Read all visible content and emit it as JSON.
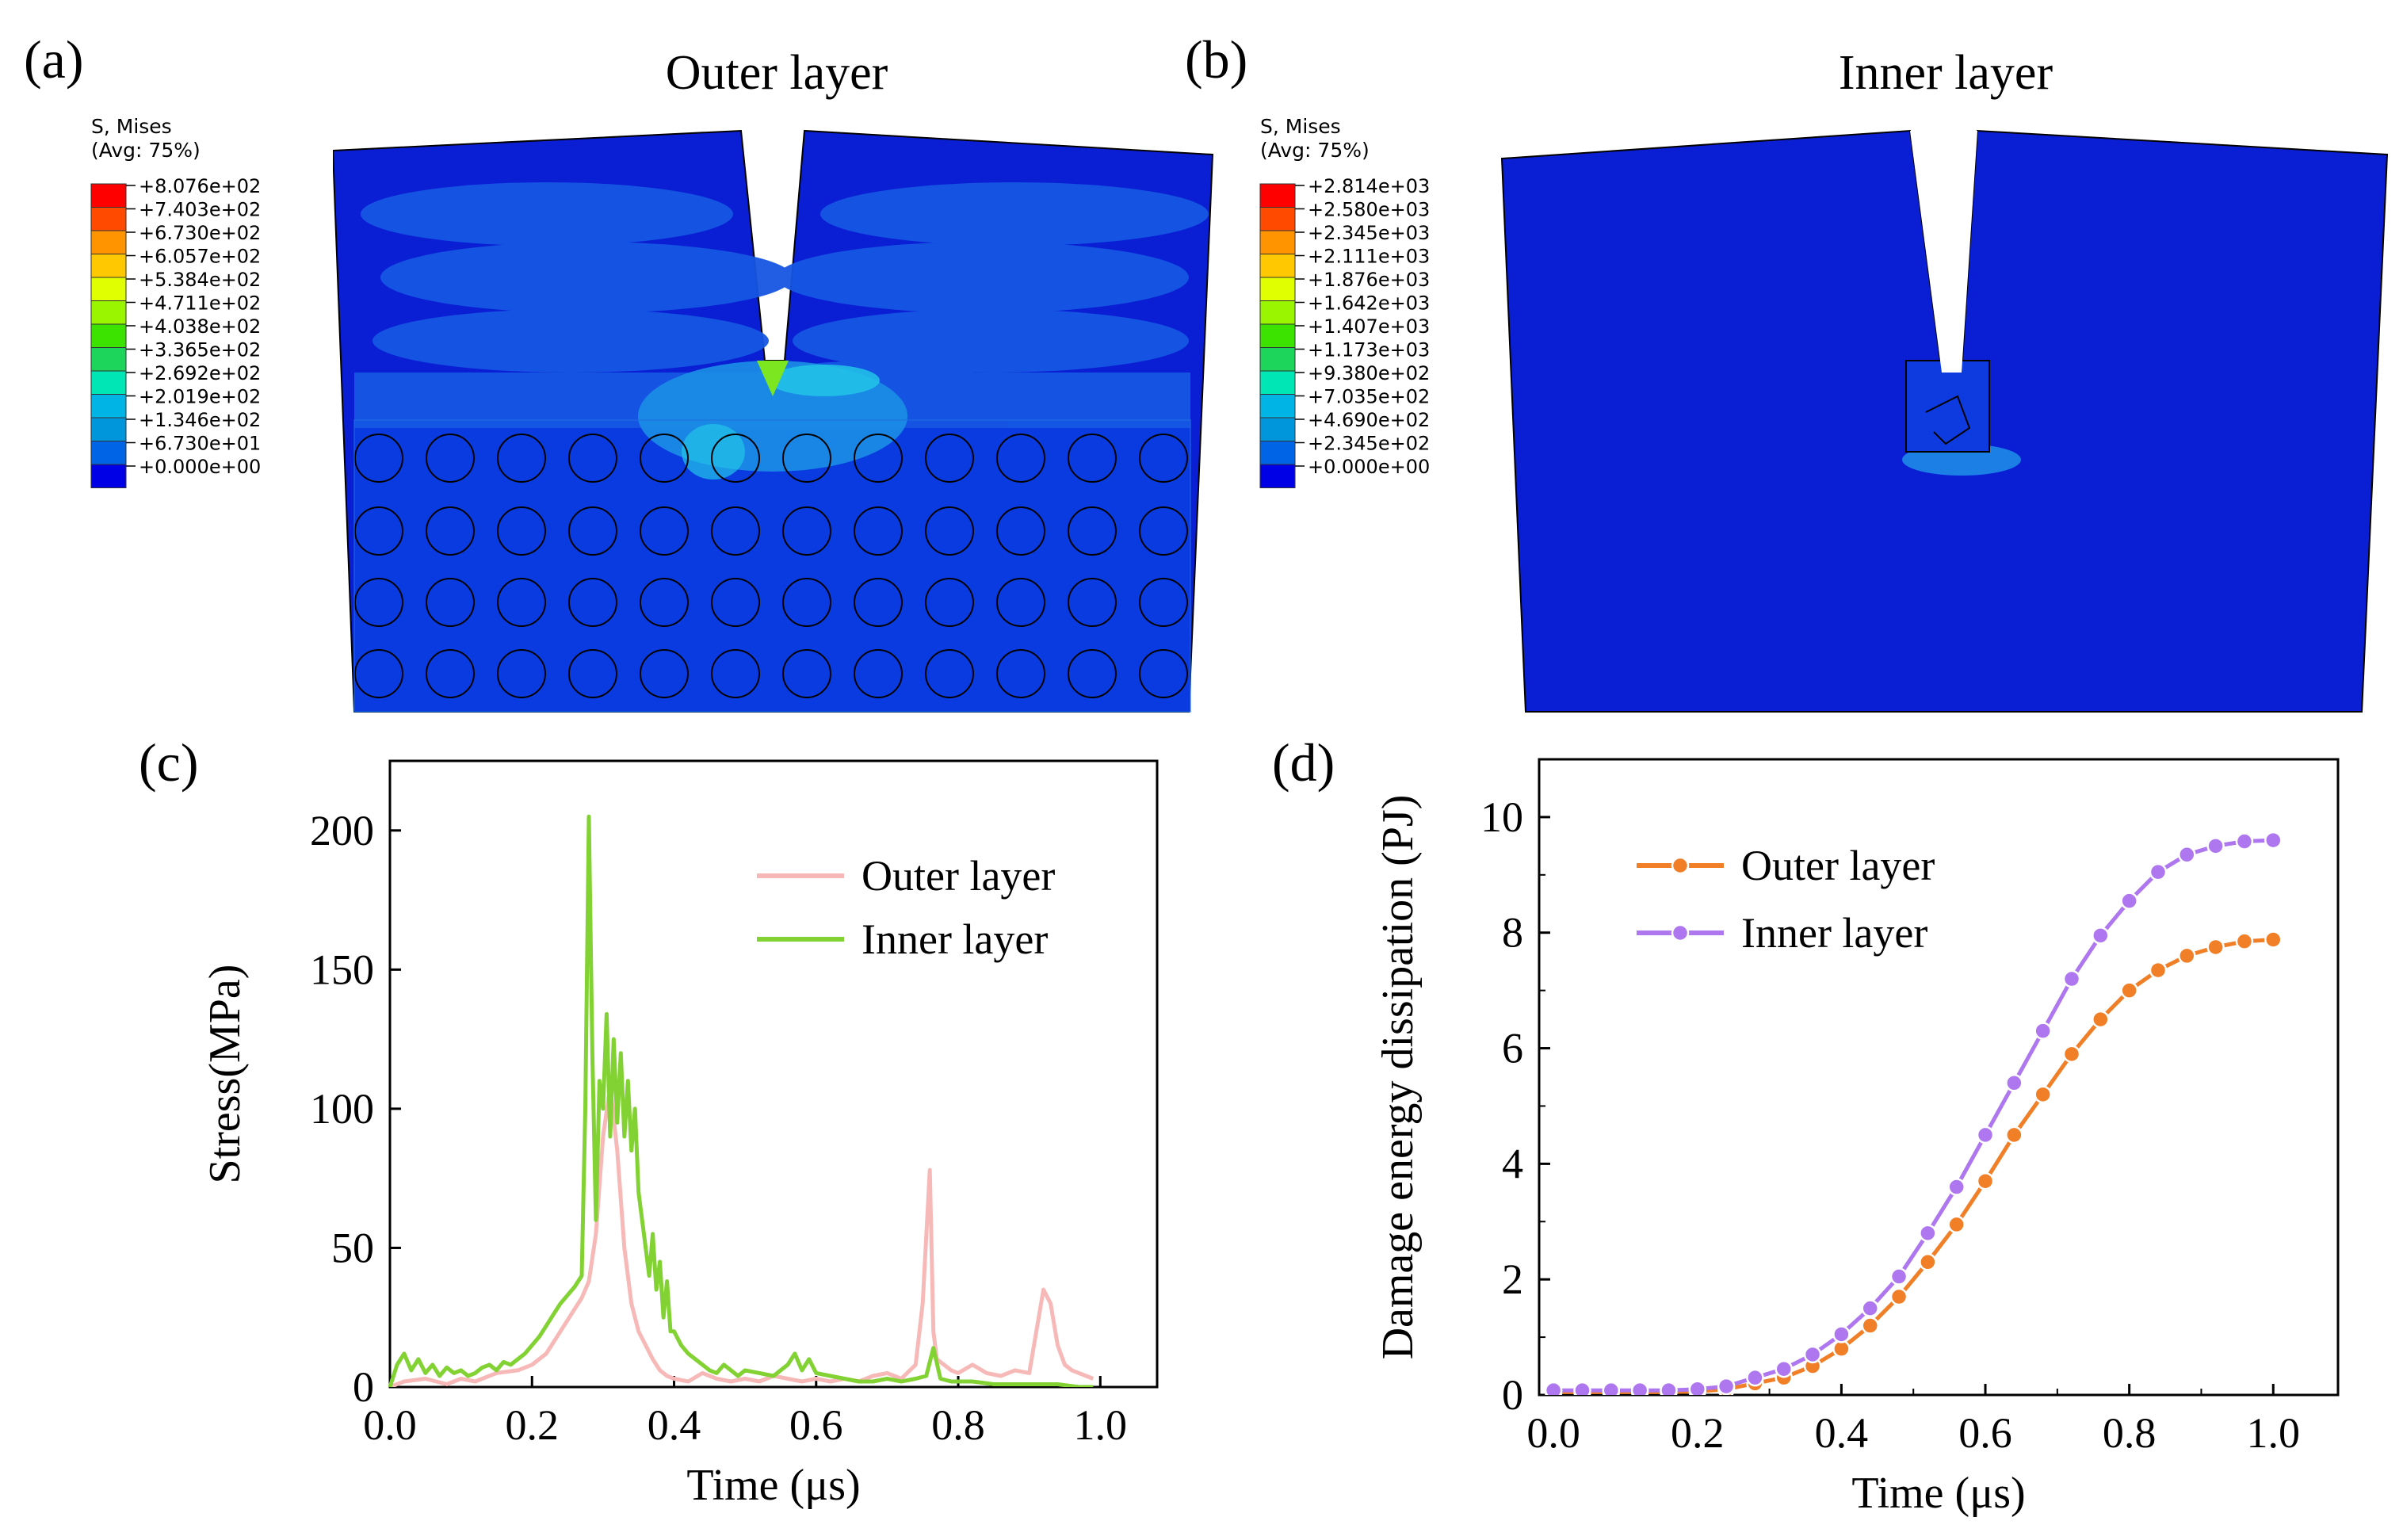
{
  "panels": {
    "a": {
      "label": "(a)",
      "title": "Outer layer",
      "legend_title": [
        "S, Mises",
        "(Avg: 75%)"
      ],
      "legend_values": [
        "+8.076e+02",
        "+7.403e+02",
        "+6.730e+02",
        "+6.057e+02",
        "+5.384e+02",
        "+4.711e+02",
        "+4.038e+02",
        "+3.365e+02",
        "+2.692e+02",
        "+2.019e+02",
        "+1.346e+02",
        "+6.730e+01",
        "+0.000e+00"
      ]
    },
    "b": {
      "label": "(b)",
      "title": "Inner layer",
      "legend_title": [
        "S, Mises",
        "(Avg: 75%)"
      ],
      "legend_values": [
        "+2.814e+03",
        "+2.580e+03",
        "+2.345e+03",
        "+2.111e+03",
        "+1.876e+03",
        "+1.642e+03",
        "+1.407e+03",
        "+1.173e+03",
        "+9.380e+02",
        "+7.035e+02",
        "+4.690e+02",
        "+2.345e+02",
        "+0.000e+00"
      ]
    },
    "c": {
      "label": "(c)"
    },
    "d": {
      "label": "(d)"
    }
  },
  "contour_colors": [
    "#FF0000",
    "#FF4A00",
    "#FF9400",
    "#FFC800",
    "#E0FF00",
    "#9AF500",
    "#3CE300",
    "#1ED55C",
    "#00E6B4",
    "#00B4E6",
    "#0096DC",
    "#0064E6",
    "#0000E6"
  ],
  "chart_data": [
    {
      "id": "c",
      "type": "line",
      "title": "",
      "xlabel": "Time (μs)",
      "ylabel": "Stress(MPa)",
      "xlim": [
        0.0,
        1.08
      ],
      "ylim": [
        0,
        225
      ],
      "xticks": [
        0.0,
        0.2,
        0.4,
        0.6,
        0.8,
        1.0
      ],
      "xtick_labels": [
        "0.0",
        "0.2",
        "0.4",
        "0.6",
        "0.8",
        "1.0"
      ],
      "yticks": [
        0,
        50,
        100,
        150,
        200
      ],
      "ytick_labels": [
        "0",
        "50",
        "100",
        "150",
        "200"
      ],
      "legend_position": "top-right",
      "series": [
        {
          "name": "Outer layer",
          "color": "#F7B9B7",
          "x": [
            0.0,
            0.02,
            0.05,
            0.08,
            0.1,
            0.12,
            0.15,
            0.18,
            0.2,
            0.22,
            0.24,
            0.26,
            0.27,
            0.28,
            0.29,
            0.3,
            0.31,
            0.32,
            0.33,
            0.34,
            0.35,
            0.36,
            0.37,
            0.38,
            0.39,
            0.4,
            0.42,
            0.44,
            0.46,
            0.48,
            0.5,
            0.52,
            0.54,
            0.56,
            0.58,
            0.6,
            0.62,
            0.64,
            0.66,
            0.68,
            0.7,
            0.72,
            0.74,
            0.75,
            0.76,
            0.765,
            0.77,
            0.78,
            0.79,
            0.8,
            0.82,
            0.84,
            0.86,
            0.88,
            0.9,
            0.91,
            0.92,
            0.93,
            0.94,
            0.95,
            0.96,
            0.97,
            0.98,
            0.99
          ],
          "y": [
            0,
            2,
            3,
            1,
            3,
            2,
            5,
            6,
            8,
            12,
            20,
            28,
            32,
            38,
            55,
            90,
            108,
            85,
            50,
            30,
            20,
            15,
            10,
            6,
            4,
            3,
            2,
            5,
            3,
            2,
            3,
            2,
            4,
            3,
            2,
            3,
            2,
            3,
            2,
            4,
            5,
            3,
            8,
            30,
            78,
            20,
            10,
            8,
            6,
            5,
            8,
            5,
            4,
            6,
            5,
            20,
            35,
            30,
            15,
            8,
            6,
            5,
            4,
            3
          ]
        },
        {
          "name": "Inner layer",
          "color": "#82D233",
          "x": [
            0.0,
            0.01,
            0.02,
            0.03,
            0.04,
            0.05,
            0.06,
            0.07,
            0.08,
            0.09,
            0.1,
            0.11,
            0.12,
            0.13,
            0.14,
            0.15,
            0.16,
            0.17,
            0.18,
            0.19,
            0.2,
            0.21,
            0.22,
            0.23,
            0.24,
            0.25,
            0.26,
            0.27,
            0.275,
            0.28,
            0.285,
            0.29,
            0.295,
            0.3,
            0.305,
            0.31,
            0.315,
            0.32,
            0.325,
            0.33,
            0.335,
            0.34,
            0.345,
            0.35,
            0.355,
            0.36,
            0.365,
            0.37,
            0.375,
            0.38,
            0.385,
            0.39,
            0.395,
            0.4,
            0.41,
            0.42,
            0.43,
            0.44,
            0.45,
            0.46,
            0.47,
            0.48,
            0.49,
            0.5,
            0.52,
            0.54,
            0.56,
            0.57,
            0.58,
            0.59,
            0.6,
            0.62,
            0.64,
            0.66,
            0.68,
            0.7,
            0.72,
            0.74,
            0.755,
            0.765,
            0.775,
            0.79,
            0.82,
            0.85,
            0.88,
            0.91,
            0.94,
            0.97,
            0.99
          ],
          "y": [
            0,
            8,
            12,
            6,
            10,
            5,
            8,
            4,
            7,
            5,
            6,
            4,
            5,
            7,
            8,
            6,
            9,
            8,
            10,
            12,
            15,
            18,
            22,
            26,
            30,
            33,
            36,
            40,
            100,
            205,
            120,
            60,
            110,
            100,
            134,
            90,
            125,
            95,
            120,
            90,
            110,
            85,
            100,
            70,
            60,
            50,
            40,
            55,
            35,
            45,
            25,
            38,
            20,
            20,
            15,
            12,
            10,
            8,
            6,
            5,
            8,
            6,
            4,
            6,
            5,
            4,
            8,
            12,
            6,
            10,
            5,
            4,
            3,
            2,
            2,
            3,
            2,
            3,
            4,
            14,
            3,
            2,
            2,
            1,
            1,
            1,
            1,
            0,
            0
          ]
        }
      ]
    },
    {
      "id": "d",
      "type": "line",
      "title": "",
      "xlabel": "Time (μs)",
      "ylabel": "Damage energy dissipation (PJ)",
      "xlim": [
        -0.02,
        1.09
      ],
      "ylim": [
        0,
        11
      ],
      "xticks": [
        0.0,
        0.2,
        0.4,
        0.6,
        0.8,
        1.0
      ],
      "xtick_labels": [
        "0.0",
        "0.2",
        "0.4",
        "0.6",
        "0.8",
        "1.0"
      ],
      "yticks": [
        0,
        2,
        4,
        6,
        8,
        10
      ],
      "ytick_labels": [
        "0",
        "2",
        "4",
        "6",
        "8",
        "10"
      ],
      "legend_position": "top-left",
      "series": [
        {
          "name": "Outer layer",
          "color": "#F07F27",
          "x": [
            0.0,
            0.04,
            0.08,
            0.12,
            0.16,
            0.2,
            0.24,
            0.28,
            0.32,
            0.36,
            0.4,
            0.44,
            0.48,
            0.52,
            0.56,
            0.6,
            0.64,
            0.68,
            0.72,
            0.76,
            0.8,
            0.84,
            0.88,
            0.92,
            0.96,
            1.0
          ],
          "y": [
            0.05,
            0.05,
            0.05,
            0.05,
            0.05,
            0.06,
            0.1,
            0.2,
            0.3,
            0.5,
            0.8,
            1.2,
            1.7,
            2.3,
            2.95,
            3.7,
            4.5,
            5.2,
            5.9,
            6.5,
            7.0,
            7.35,
            7.6,
            7.75,
            7.85,
            7.88
          ]
        },
        {
          "name": "Inner layer",
          "color": "#AE77F0",
          "x": [
            0.0,
            0.04,
            0.08,
            0.12,
            0.16,
            0.2,
            0.24,
            0.28,
            0.32,
            0.36,
            0.4,
            0.44,
            0.48,
            0.52,
            0.56,
            0.6,
            0.64,
            0.68,
            0.72,
            0.76,
            0.8,
            0.84,
            0.88,
            0.92,
            0.96,
            1.0
          ],
          "y": [
            0.08,
            0.08,
            0.08,
            0.08,
            0.08,
            0.1,
            0.15,
            0.3,
            0.45,
            0.7,
            1.05,
            1.5,
            2.05,
            2.8,
            3.6,
            4.5,
            5.4,
            6.3,
            7.2,
            7.95,
            8.55,
            9.05,
            9.35,
            9.5,
            9.58,
            9.6
          ]
        }
      ]
    }
  ]
}
